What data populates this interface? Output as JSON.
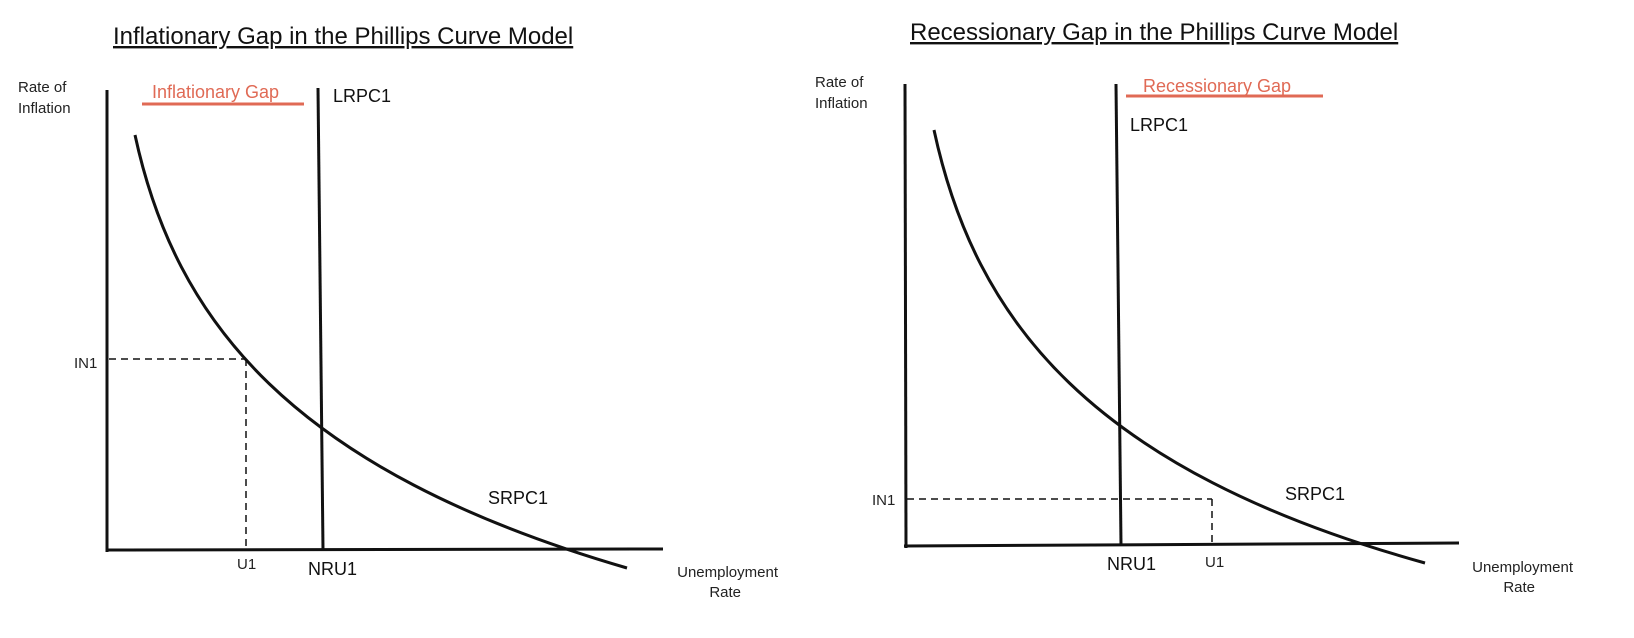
{
  "colors": {
    "gap": "#e06a55",
    "ink": "#111111"
  },
  "diagrams": [
    {
      "title": "Inflationary Gap in the Phillips Curve Model",
      "y_axis_label_line1": "Rate of",
      "y_axis_label_line2": "Inflation",
      "x_axis_label_line1": "Unemployment",
      "x_axis_label_line2": "Rate",
      "gap_label": "Inflationary Gap",
      "lrpc_label": "LRPC1",
      "srpc_label": "SRPC1",
      "in_label": "IN1",
      "u_label": "U1",
      "nru_label": "NRU1"
    },
    {
      "title": "Recessionary Gap in the Phillips Curve Model",
      "y_axis_label_line1": "Rate of",
      "y_axis_label_line2": "Inflation",
      "x_axis_label_line1": "Unemployment",
      "x_axis_label_line2": "Rate",
      "gap_label": "Recessionary Gap",
      "lrpc_label": "LRPC1",
      "srpc_label": "SRPC1",
      "in_label": "IN1",
      "u_label": "U1",
      "nru_label": "NRU1"
    }
  ]
}
